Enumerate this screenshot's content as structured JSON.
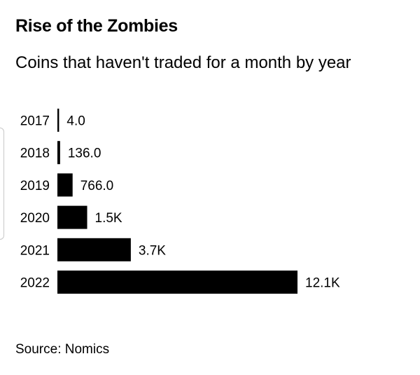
{
  "chart_data": {
    "type": "bar",
    "orientation": "horizontal",
    "title": "Rise of the Zombies",
    "subtitle": "Coins that haven't traded for a month by year",
    "categories": [
      "2017",
      "2018",
      "2019",
      "2020",
      "2021",
      "2022"
    ],
    "values": [
      4,
      136,
      766,
      1500,
      3700,
      12100
    ],
    "value_labels": [
      "4.0",
      "136.0",
      "766.0",
      "1.5K",
      "3.7K",
      "12.1K"
    ],
    "xlabel": "",
    "ylabel": "",
    "xlim": [
      0,
      12100
    ],
    "grid": false,
    "legend": "none",
    "bar_color": "#000000",
    "source": "Source: Nomics"
  }
}
